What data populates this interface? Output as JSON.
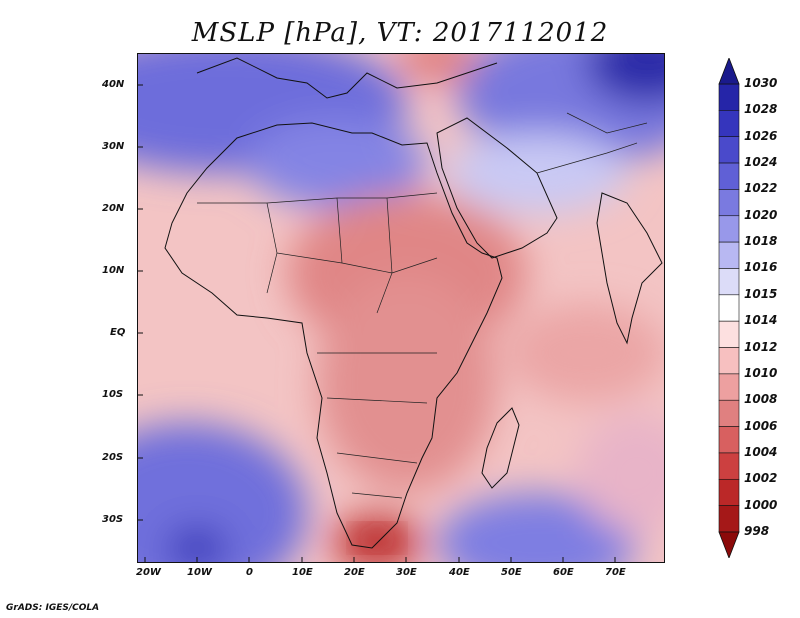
{
  "title": "MSLP [hPa], VT: 2017112012",
  "footer": "GrADS: IGES/COLA",
  "axes": {
    "lat_ticks": [
      "40N",
      "30N",
      "20N",
      "10N",
      "EQ",
      "10S",
      "20S",
      "30S"
    ],
    "lon_ticks": [
      "20W",
      "10W",
      "0",
      "10E",
      "20E",
      "30E",
      "40E",
      "50E",
      "60E",
      "70E"
    ]
  },
  "colorbar": {
    "levels": [
      "1030",
      "1028",
      "1026",
      "1024",
      "1022",
      "1020",
      "1018",
      "1016",
      "1015",
      "1014",
      "1012",
      "1010",
      "1008",
      "1006",
      "1004",
      "1002",
      "1000",
      "998"
    ],
    "colors": [
      "#1a1a8c",
      "#2525a8",
      "#3535bd",
      "#4a4acb",
      "#6060d6",
      "#7a7ae0",
      "#9898ea",
      "#b8b8f2",
      "#dcdcf8",
      "#ffffff",
      "#fde0e0",
      "#f7c0c0",
      "#eda0a0",
      "#e08080",
      "#d86060",
      "#cc4040",
      "#bb2828",
      "#a51818",
      "#8b0a0a"
    ]
  }
}
